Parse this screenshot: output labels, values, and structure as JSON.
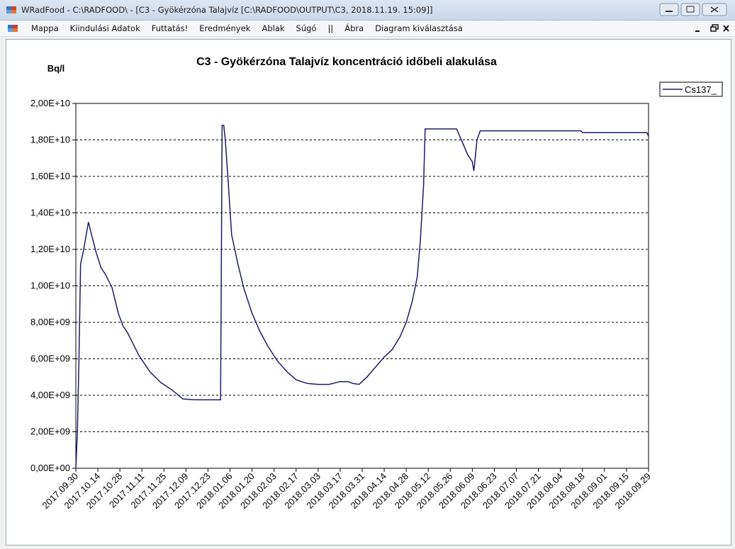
{
  "window": {
    "title": "WRadFood - C:\\RADFOOD\\ - [C3 - Gyökérzóna Talajvíz [C:\\RADFOOD\\OUTPUT\\C3, 2018.11.19. 15:09]]"
  },
  "menu": [
    "Mappa",
    "Kiindulási Adatok",
    "Futtatás!",
    "Eredmények",
    "Ablak",
    "Súgó",
    "||",
    "Ábra",
    "Diagram kiválasztása"
  ],
  "chart_data": {
    "type": "line",
    "title": "C3 - Gyökérzóna Talajvíz koncentráció időbeli alakulása",
    "y_label": "Bq/l",
    "x": [
      "2017.09.30",
      "2017.10.01",
      "2017.10.02",
      "2017.10.03",
      "2017.10.05",
      "2017.10.08",
      "2017.10.10",
      "2017.10.13",
      "2017.10.16",
      "2017.10.19",
      "2017.10.23",
      "2017.10.27",
      "2017.10.30",
      "2017.11.02",
      "2017.11.09",
      "2017.11.16",
      "2017.11.23",
      "2017.11.30",
      "2017.12.07",
      "2017.12.14",
      "2017.12.24",
      "2017.12.31",
      "2018.01.01",
      "2018.01.02",
      "2018.01.03",
      "2018.01.05",
      "2018.01.07",
      "2018.01.11",
      "2018.01.15",
      "2018.01.20",
      "2018.01.25",
      "2018.01.30",
      "2018.02.05",
      "2018.02.11",
      "2018.02.17",
      "2018.02.24",
      "2018.03.03",
      "2018.03.10",
      "2018.03.17",
      "2018.03.22",
      "2018.03.25",
      "2018.03.29",
      "2018.04.03",
      "2018.04.08",
      "2018.04.14",
      "2018.04.19",
      "2018.04.24",
      "2018.04.28",
      "2018.05.02",
      "2018.05.05",
      "2018.05.07",
      "2018.05.09",
      "2018.05.10",
      "2018.05.30",
      "2018.06.03",
      "2018.06.06",
      "2018.06.09",
      "2018.06.10",
      "2018.06.12",
      "2018.06.14",
      "2018.08.17",
      "2018.08.18",
      "2018.09.28",
      "2018.09.29"
    ],
    "series": [
      {
        "name": "Cs137_",
        "color": "#1c1c6b",
        "values": [
          0,
          2000000000,
          6000000000,
          11200000000,
          12000000000,
          13500000000,
          12800000000,
          11800000000,
          11000000000,
          10600000000,
          9900000000,
          8500000000,
          7800000000,
          7400000000,
          6200000000,
          5300000000,
          4700000000,
          4300000000,
          3800000000,
          3750000000,
          3750000000,
          3750000000,
          18800000000,
          18800000000,
          18000000000,
          15500000000,
          12800000000,
          11200000000,
          9800000000,
          8500000000,
          7500000000,
          6700000000,
          5900000000,
          5300000000,
          4850000000,
          4650000000,
          4600000000,
          4600000000,
          4750000000,
          4750000000,
          4650000000,
          4600000000,
          5000000000,
          5500000000,
          6100000000,
          6500000000,
          7200000000,
          8000000000,
          9200000000,
          10500000000,
          12500000000,
          15500000000,
          18600000000,
          18600000000,
          17800000000,
          17200000000,
          16800000000,
          16300000000,
          18000000000,
          18500000000,
          18500000000,
          18400000000,
          18400000000,
          18200000000
        ]
      }
    ],
    "xlim": [
      "2017.09.30",
      "2018.09.29"
    ],
    "xticks": [
      "2017.09.30",
      "2017.10.14",
      "2017.10.28",
      "2017.11.11",
      "2017.11.25",
      "2017.12.09",
      "2017.12.23",
      "2018.01.06",
      "2018.01.20",
      "2018.02.03",
      "2018.02.17",
      "2018.03.03",
      "2018.03.17",
      "2018.03.31",
      "2018.04.14",
      "2018.04.28",
      "2018.05.12",
      "2018.05.26",
      "2018.06.09",
      "2018.06.23",
      "2018.07.07",
      "2018.07.21",
      "2018.08.04",
      "2018.08.18",
      "2018.09.01",
      "2018.09.15",
      "2018.09.29"
    ],
    "ylim": [
      0,
      20000000000
    ],
    "yticks": [
      {
        "value": 0,
        "label": "0,00E+00"
      },
      {
        "value": 2000000000,
        "label": "2,00E+09"
      },
      {
        "value": 4000000000,
        "label": "4,00E+09"
      },
      {
        "value": 6000000000,
        "label": "6,00E+09"
      },
      {
        "value": 8000000000,
        "label": "8,00E+09"
      },
      {
        "value": 10000000000,
        "label": "1,00E+10"
      },
      {
        "value": 12000000000,
        "label": "1,20E+10"
      },
      {
        "value": 14000000000,
        "label": "1,40E+10"
      },
      {
        "value": 16000000000,
        "label": "1,60E+10"
      },
      {
        "value": 18000000000,
        "label": "1,80E+10"
      },
      {
        "value": 20000000000,
        "label": "2,00E+10"
      }
    ],
    "grid": true,
    "legend": "top-right"
  }
}
